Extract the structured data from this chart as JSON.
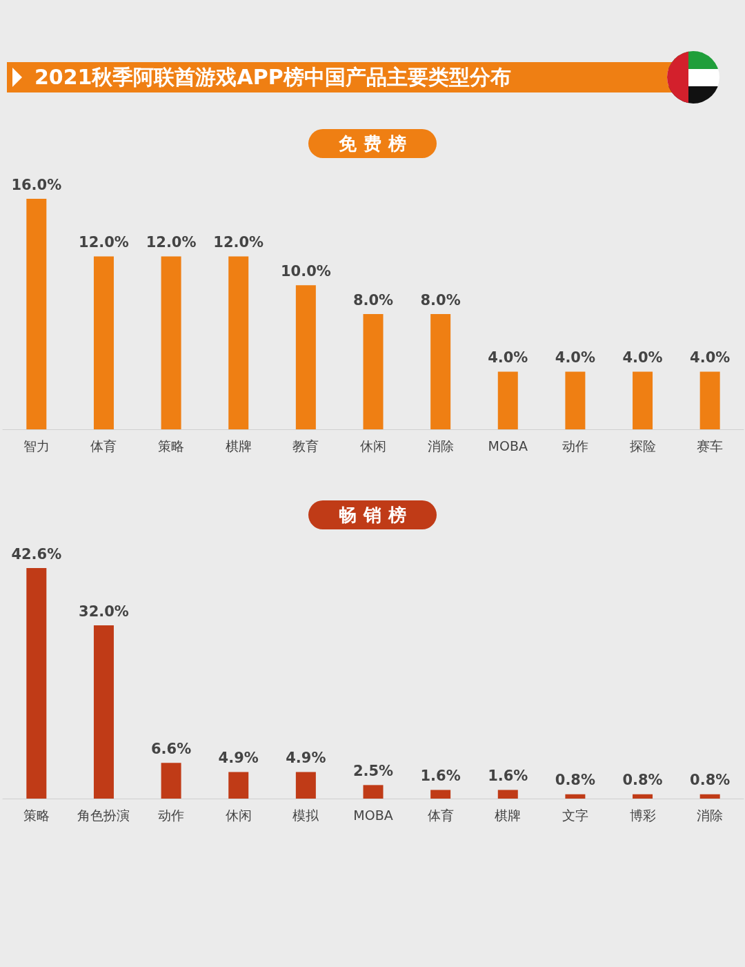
{
  "chart_data": [
    {
      "type": "bar",
      "title": "2021秋季阿联酋游戏APP榜中国产品主要类型分布",
      "subtitle": "免费榜",
      "categories": [
        "智力",
        "体育",
        "策略",
        "棋牌",
        "教育",
        "休闲",
        "消除",
        "MOBA",
        "动作",
        "探险",
        "赛车"
      ],
      "values": [
        16.0,
        12.0,
        12.0,
        12.0,
        10.0,
        8.0,
        8.0,
        4.0,
        4.0,
        4.0,
        4.0
      ],
      "value_labels": [
        "16.0%",
        "12.0%",
        "12.0%",
        "12.0%",
        "10.0%",
        "8.0%",
        "8.0%",
        "4.0%",
        "4.0%",
        "4.0%",
        "4.0%"
      ],
      "color": "#ef7f13"
    },
    {
      "type": "bar",
      "subtitle": "畅销榜",
      "categories": [
        "策略",
        "角色扮演",
        "动作",
        "休闲",
        "模拟",
        "MOBA",
        "体育",
        "棋牌",
        "文字",
        "博彩",
        "消除"
      ],
      "values": [
        42.6,
        32.0,
        6.6,
        4.9,
        4.9,
        2.5,
        1.6,
        1.6,
        0.8,
        0.8,
        0.8
      ],
      "value_labels": [
        "42.6%",
        "32.0%",
        "6.6%",
        "4.9%",
        "4.9%",
        "2.5%",
        "1.6%",
        "1.6%",
        "0.8%",
        "0.8%",
        "0.8%"
      ],
      "color": "#c03b17"
    }
  ]
}
